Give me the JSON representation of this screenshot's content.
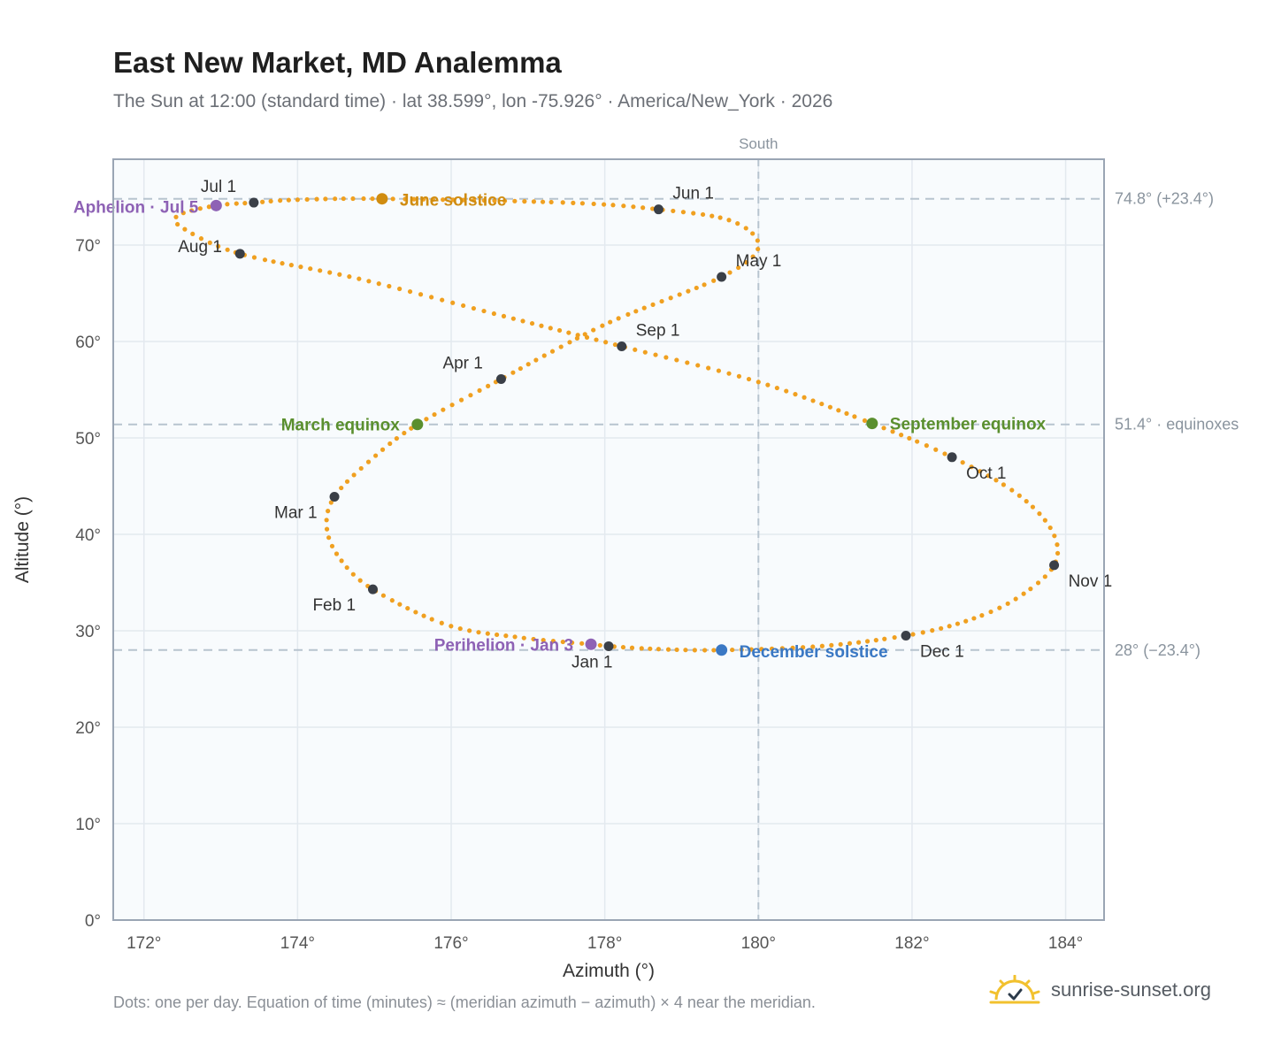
{
  "title": "East New Market, MD Analemma",
  "subtitle": "The Sun at 12:00 (standard time) · lat 38.599°, lon -75.926° · America/New_York · 2026",
  "footnote": "Dots: one per day. Equation of time (minutes) ≈ (meridian azimuth − azimuth) × 4 near the meridian.",
  "brand": {
    "name": "sunrise-sunset.org",
    "icon": "sun-logo-icon",
    "color": "#f2c12e"
  },
  "colors": {
    "plot_bg": "#f8fbfd",
    "grid": "#e3e9ef",
    "frame": "#9aa5b4",
    "trace": "#f0a020",
    "month_dot": "#3a3f47",
    "refline": "#b7c4cf",
    "solstice_june": "#d08c10",
    "solstice_december": "#3a78c4",
    "equinox": "#5a8f2e",
    "apsis": "#8e62b5"
  },
  "chart_data": {
    "type": "scatter",
    "xlabel": "Azimuth (°)",
    "ylabel": "Altitude (°)",
    "xlim": [
      171.6,
      184.5
    ],
    "ylim": [
      0,
      78.9
    ],
    "xticks": [
      172,
      174,
      176,
      178,
      180,
      182,
      184
    ],
    "yticks": [
      0,
      10,
      20,
      30,
      40,
      50,
      60,
      70
    ],
    "x_tick_suffix": "°",
    "y_tick_suffix": "°",
    "grid": true,
    "meridian": {
      "x": 180,
      "label": "South"
    },
    "reference_lines": [
      {
        "y": 74.8,
        "label": "74.8° (+23.4°)"
      },
      {
        "y": 51.4,
        "label": "51.4° · equinoxes"
      },
      {
        "y": 28,
        "label": "28° (−23.4°)"
      }
    ],
    "month_markers": [
      {
        "label": "Jan 1",
        "azimuth": 178.05,
        "altitude": 28.4
      },
      {
        "label": "Feb 1",
        "azimuth": 174.98,
        "altitude": 34.3
      },
      {
        "label": "Mar 1",
        "azimuth": 174.48,
        "altitude": 43.9
      },
      {
        "label": "Apr 1",
        "azimuth": 176.65,
        "altitude": 56.1
      },
      {
        "label": "May 1",
        "azimuth": 179.52,
        "altitude": 66.7
      },
      {
        "label": "Jun 1",
        "azimuth": 178.7,
        "altitude": 73.7
      },
      {
        "label": "Jul 1",
        "azimuth": 173.43,
        "altitude": 74.4
      },
      {
        "label": "Aug 1",
        "azimuth": 173.25,
        "altitude": 69.1
      },
      {
        "label": "Sep 1",
        "azimuth": 178.22,
        "altitude": 59.5
      },
      {
        "label": "Oct 1",
        "azimuth": 182.52,
        "altitude": 48.0
      },
      {
        "label": "Nov 1",
        "azimuth": 183.85,
        "altitude": 36.8
      },
      {
        "label": "Dec 1",
        "azimuth": 181.92,
        "altitude": 29.5
      }
    ],
    "events": [
      {
        "label": "Perihelion · Jan 3",
        "azimuth": 177.82,
        "altitude": 28.6,
        "kind": "apsis"
      },
      {
        "label": "March equinox",
        "azimuth": 175.56,
        "altitude": 51.4,
        "kind": "equinox"
      },
      {
        "label": "June solstice",
        "azimuth": 175.1,
        "altitude": 74.8,
        "kind": "solstice_june"
      },
      {
        "label": "Aphelion · Jul 5",
        "azimuth": 172.94,
        "altitude": 74.1,
        "kind": "apsis"
      },
      {
        "label": "September equinox",
        "azimuth": 181.48,
        "altitude": 51.5,
        "kind": "equinox"
      },
      {
        "label": "December solstice",
        "azimuth": 179.52,
        "altitude": 28.0,
        "kind": "solstice_december"
      }
    ],
    "series": [
      {
        "marker": "dot",
        "frequency": "daily",
        "points": [
          [
            178.05,
            28.4
          ],
          [
            177.82,
            28.6
          ],
          [
            176.9,
            29.3
          ],
          [
            175.95,
            30.6
          ],
          [
            174.98,
            34.3
          ],
          [
            174.55,
            37.5
          ],
          [
            174.38,
            40.7
          ],
          [
            174.48,
            43.9
          ],
          [
            174.95,
            47.7
          ],
          [
            175.56,
            51.4
          ],
          [
            176.65,
            56.1
          ],
          [
            177.3,
            58.9
          ],
          [
            178.15,
            62.3
          ],
          [
            179.52,
            66.7
          ],
          [
            180.0,
            69.8
          ],
          [
            179.65,
            72.5
          ],
          [
            178.7,
            73.7
          ],
          [
            177.5,
            74.4
          ],
          [
            175.1,
            74.8
          ],
          [
            174.0,
            74.7
          ],
          [
            173.43,
            74.4
          ],
          [
            172.94,
            74.1
          ],
          [
            172.45,
            73.1
          ],
          [
            172.5,
            71.8
          ],
          [
            173.25,
            69.1
          ],
          [
            174.8,
            66.5
          ],
          [
            176.6,
            62.8
          ],
          [
            178.22,
            59.5
          ],
          [
            180.0,
            55.8
          ],
          [
            181.48,
            51.5
          ],
          [
            182.52,
            48.0
          ],
          [
            183.35,
            44.3
          ],
          [
            183.82,
            40.4
          ],
          [
            183.85,
            36.8
          ],
          [
            183.35,
            33.3
          ],
          [
            182.7,
            31.0
          ],
          [
            181.92,
            29.5
          ],
          [
            180.8,
            28.4
          ],
          [
            179.52,
            28.0
          ],
          [
            178.7,
            28.1
          ],
          [
            178.05,
            28.4
          ]
        ]
      }
    ]
  }
}
